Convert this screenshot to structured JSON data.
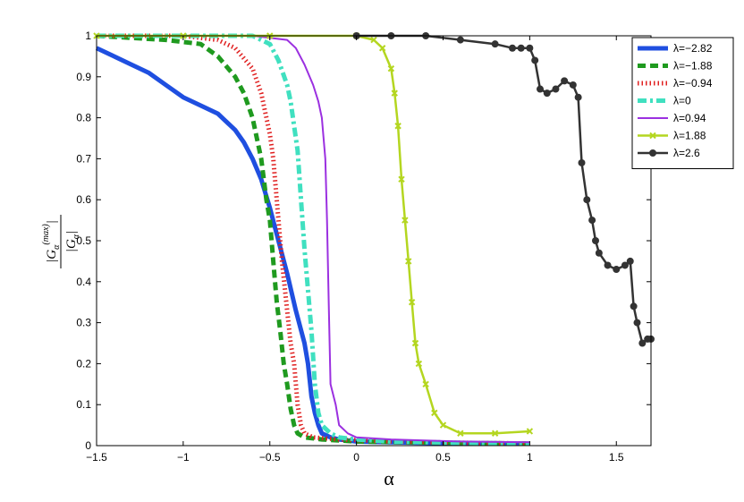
{
  "chart_data": {
    "type": "line",
    "xlabel": "α",
    "ylabel_parts": {
      "num_base": "G",
      "num_sub": "α",
      "num_sup": "(max)",
      "den_base": "G",
      "den_sub": "α"
    },
    "xlim": [
      -1.5,
      1.7
    ],
    "ylim": [
      0,
      1
    ],
    "xticks": [
      -1.5,
      -1,
      -0.5,
      0,
      0.5,
      1,
      1.5
    ],
    "xtick_labels": [
      "−1.5",
      "−1",
      "−0.5",
      "0",
      "0.5",
      "1",
      "1.5"
    ],
    "yticks": [
      0,
      0.1,
      0.2,
      0.3,
      0.4,
      0.5,
      0.6,
      0.7,
      0.8,
      0.9,
      1
    ],
    "ytick_labels": [
      "0",
      "0.1",
      "0.2",
      "0.3",
      "0.4",
      "0.5",
      "0.6",
      "0.7",
      "0.8",
      "0.9",
      "1"
    ],
    "legend_position": "top-right",
    "grid": false,
    "series": [
      {
        "name": "λ=−2.82",
        "color": "#1f4fe0",
        "style": "solid",
        "marker": "none",
        "x": [
          -1.5,
          -1.4,
          -1.3,
          -1.2,
          -1.1,
          -1.0,
          -0.9,
          -0.8,
          -0.7,
          -0.65,
          -0.6,
          -0.55,
          -0.5,
          -0.45,
          -0.4,
          -0.35,
          -0.3,
          -0.28,
          -0.26,
          -0.24,
          -0.22,
          -0.2,
          -0.15,
          -0.1,
          0.0,
          0.2,
          0.5,
          0.8,
          1.0
        ],
        "y": [
          0.97,
          0.95,
          0.93,
          0.91,
          0.88,
          0.85,
          0.83,
          0.81,
          0.77,
          0.74,
          0.7,
          0.65,
          0.58,
          0.5,
          0.42,
          0.33,
          0.25,
          0.2,
          0.12,
          0.08,
          0.05,
          0.03,
          0.02,
          0.015,
          0.01,
          0.008,
          0.006,
          0.005,
          0.005
        ]
      },
      {
        "name": "λ=−1.88",
        "color": "#1f9a1f",
        "style": "dashed",
        "marker": "none",
        "x": [
          -1.5,
          -1.1,
          -0.9,
          -0.8,
          -0.7,
          -0.65,
          -0.6,
          -0.55,
          -0.52,
          -0.5,
          -0.48,
          -0.46,
          -0.44,
          -0.42,
          -0.4,
          -0.38,
          -0.36,
          -0.34,
          -0.3,
          -0.2,
          0.0,
          0.5,
          1.0
        ],
        "y": [
          1.0,
          0.99,
          0.98,
          0.95,
          0.9,
          0.86,
          0.8,
          0.7,
          0.6,
          0.55,
          0.45,
          0.35,
          0.28,
          0.2,
          0.15,
          0.09,
          0.05,
          0.03,
          0.02,
          0.015,
          0.01,
          0.007,
          0.005
        ]
      },
      {
        "name": "λ=−0.94",
        "color": "#e02020",
        "style": "dotted",
        "marker": "none",
        "x": [
          -1.5,
          -1.0,
          -0.8,
          -0.7,
          -0.6,
          -0.55,
          -0.5,
          -0.48,
          -0.45,
          -0.43,
          -0.4,
          -0.38,
          -0.36,
          -0.34,
          -0.32,
          -0.3,
          -0.25,
          -0.1,
          0.2,
          0.6,
          1.0
        ],
        "y": [
          1.0,
          1.0,
          0.99,
          0.97,
          0.92,
          0.86,
          0.76,
          0.7,
          0.55,
          0.45,
          0.33,
          0.25,
          0.2,
          0.1,
          0.05,
          0.03,
          0.02,
          0.015,
          0.01,
          0.007,
          0.005
        ]
      },
      {
        "name": "λ=0",
        "color": "#40e0c0",
        "style": "dashdot",
        "marker": "none",
        "x": [
          -1.5,
          -0.6,
          -0.5,
          -0.45,
          -0.4,
          -0.38,
          -0.36,
          -0.34,
          -0.32,
          -0.3,
          -0.28,
          -0.26,
          -0.24,
          -0.22,
          -0.2,
          -0.15,
          -0.1,
          0.0,
          0.2,
          0.6,
          1.0
        ],
        "y": [
          1.0,
          1.0,
          0.98,
          0.94,
          0.88,
          0.84,
          0.78,
          0.72,
          0.6,
          0.48,
          0.38,
          0.28,
          0.15,
          0.08,
          0.05,
          0.03,
          0.02,
          0.015,
          0.01,
          0.007,
          0.005
        ]
      },
      {
        "name": "λ=0.94",
        "color": "#9b30e0",
        "style": "solid",
        "marker": "none",
        "x": [
          -1.5,
          -1.0,
          -0.6,
          -0.4,
          -0.35,
          -0.3,
          -0.25,
          -0.22,
          -0.2,
          -0.18,
          -0.17,
          -0.16,
          -0.15,
          -0.12,
          -0.1,
          -0.05,
          0.0,
          0.2,
          0.6,
          1.0
        ],
        "y": [
          1.0,
          1.0,
          1.0,
          0.99,
          0.97,
          0.93,
          0.88,
          0.84,
          0.8,
          0.7,
          0.55,
          0.35,
          0.15,
          0.1,
          0.05,
          0.03,
          0.02,
          0.015,
          0.01,
          0.008
        ]
      },
      {
        "name": "λ=1.88",
        "color": "#b4d620",
        "style": "solid",
        "marker": "x",
        "x": [
          -1.5,
          -1.0,
          -0.5,
          0.0,
          0.1,
          0.15,
          0.2,
          0.22,
          0.24,
          0.26,
          0.28,
          0.3,
          0.32,
          0.34,
          0.36,
          0.4,
          0.45,
          0.5,
          0.6,
          0.8,
          1.0
        ],
        "y": [
          1.0,
          1.0,
          1.0,
          1.0,
          0.99,
          0.97,
          0.92,
          0.86,
          0.78,
          0.65,
          0.55,
          0.45,
          0.35,
          0.25,
          0.2,
          0.15,
          0.08,
          0.05,
          0.03,
          0.03,
          0.035
        ]
      },
      {
        "name": "λ=2.6",
        "color": "#333333",
        "style": "solid",
        "marker": "o",
        "x": [
          0.0,
          0.2,
          0.4,
          0.6,
          0.8,
          0.9,
          0.95,
          1.0,
          1.03,
          1.06,
          1.1,
          1.15,
          1.2,
          1.25,
          1.28,
          1.3,
          1.33,
          1.36,
          1.38,
          1.4,
          1.45,
          1.5,
          1.55,
          1.58,
          1.6,
          1.62,
          1.65,
          1.68,
          1.7
        ],
        "y": [
          1.0,
          1.0,
          1.0,
          0.99,
          0.98,
          0.97,
          0.97,
          0.97,
          0.94,
          0.87,
          0.86,
          0.87,
          0.89,
          0.88,
          0.85,
          0.69,
          0.6,
          0.55,
          0.5,
          0.47,
          0.44,
          0.43,
          0.44,
          0.45,
          0.34,
          0.3,
          0.25,
          0.26,
          0.26
        ]
      }
    ]
  }
}
